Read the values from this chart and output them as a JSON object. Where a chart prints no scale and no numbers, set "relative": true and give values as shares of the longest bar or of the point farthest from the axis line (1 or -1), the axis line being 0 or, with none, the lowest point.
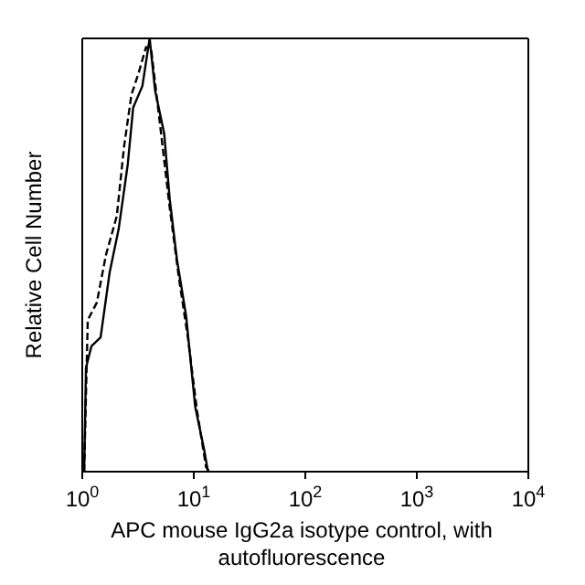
{
  "chart_data": {
    "type": "line",
    "relative": true,
    "xlabel": "APC mouse IgG2a isotype control, with autofluorescence",
    "ylabel": "Relative Cell Number",
    "log": "x",
    "xlim": [
      1,
      10000
    ],
    "xticks": [
      {
        "value": 1,
        "label": "10$^{0}$"
      },
      {
        "value": 10,
        "label": "10$^{1}$"
      },
      {
        "value": 100,
        "label": "10$^{2}$"
      },
      {
        "value": 1000,
        "label": "10$^{3}$"
      },
      {
        "value": 10000,
        "label": "10$^{4}$"
      }
    ],
    "grid": false,
    "legend": false,
    "marker": "none",
    "series": [
      {
        "color": "#000000",
        "line_style": "solid",
        "x": [
          1.04,
          1.08,
          1.21,
          1.46,
          1.76,
          2.12,
          2.56,
          2.86,
          3.46,
          4.02,
          4.5,
          5.43,
          6.08,
          7.06,
          8.53,
          10.3,
          12.4,
          13.4
        ],
        "values": [
          0,
          0.24,
          0.29,
          0.31,
          0.46,
          0.56,
          0.71,
          0.84,
          0.89,
          1,
          0.88,
          0.78,
          0.63,
          0.49,
          0.36,
          0.15,
          0.05,
          0
        ]
      },
      {
        "color": "#000000",
        "line_style": "dashed",
        "x": [
          1.04,
          1.12,
          1.35,
          1.63,
          2.04,
          2.37,
          2.76,
          3.2,
          3.73,
          4.17,
          5.04,
          6.08,
          7.33,
          8.85,
          10.7,
          12.9,
          13.9
        ],
        "values": [
          0,
          0.35,
          0.39,
          0.5,
          0.59,
          0.75,
          0.87,
          0.92,
          0.98,
          0.97,
          0.79,
          0.61,
          0.45,
          0.31,
          0.14,
          0.01,
          0
        ]
      }
    ]
  }
}
